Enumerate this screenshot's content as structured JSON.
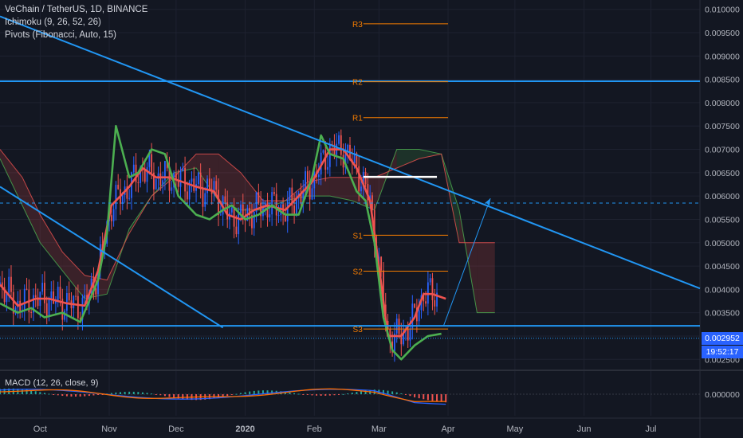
{
  "header": {
    "symbol": "VeChain / TetherUS, 1D, BINANCE",
    "indicator1": "Ichimoku (9, 26, 52, 26)",
    "indicator2": "Pivots (Fibonacci, Auto, 15)"
  },
  "macd_panel": {
    "label": "MACD (12, 26, close, 9)",
    "zero_label": "0.000000"
  },
  "price_tags": {
    "last_price": "0.002952",
    "countdown": "19:52:17"
  },
  "colors": {
    "background": "#131722",
    "grid": "#1e2230",
    "axis_text": "#b2b5be",
    "candle_up": "#2962ff",
    "candle_down": "#ef5350",
    "tenkan": "#ef5350",
    "kijun": "#4caf50",
    "cloud_bull": "#4caf50",
    "cloud_bear": "#ef5350",
    "trendline": "#2196f3",
    "pivot": "#f57c00"
  },
  "chart_data": {
    "type": "line",
    "title": "VeChain / TetherUS, 1D, BINANCE",
    "ylim": [
      0.0023,
      0.0102
    ],
    "y_ticks": [
      "0.010000",
      "0.009500",
      "0.009000",
      "0.008500",
      "0.008000",
      "0.007500",
      "0.007000",
      "0.006500",
      "0.006000",
      "0.005500",
      "0.005000",
      "0.004500",
      "0.004000",
      "0.003500",
      "0.003000",
      "0.002500"
    ],
    "y_tick_values": [
      0.01,
      0.0095,
      0.009,
      0.0085,
      0.008,
      0.0075,
      0.007,
      0.0065,
      0.006,
      0.0055,
      0.005,
      0.0045,
      0.004,
      0.0035,
      0.003,
      0.0025
    ],
    "x_ticks": [
      "Oct",
      "Nov",
      "Dec",
      "2020",
      "Feb",
      "Mar",
      "Apr",
      "May",
      "Jun",
      "Jul"
    ],
    "x_tick_days": [
      0,
      31,
      61,
      92,
      123,
      152,
      183,
      213,
      244,
      274
    ],
    "x_range_days": [
      -18,
      296
    ],
    "pivots": [
      {
        "label": "R3",
        "value": 0.00969
      },
      {
        "label": "R2",
        "value": 0.00845
      },
      {
        "label": "R1",
        "value": 0.00768
      },
      {
        "label": "S1",
        "value": 0.00516
      },
      {
        "label": "S2",
        "value": 0.00439
      },
      {
        "label": "S3",
        "value": 0.00315
      }
    ],
    "pivot_day_range": [
      145,
      183
    ],
    "horizontal_lines": [
      {
        "value": 0.00846
      },
      {
        "value": 0.00322
      }
    ],
    "dashed_level": 0.00585,
    "last_price_level": 0.002952,
    "trendlines": [
      {
        "from": [
          -18,
          0.00985
        ],
        "to": [
          296,
          0.00402
        ]
      },
      {
        "from": [
          -18,
          0.0062
        ],
        "to": [
          82,
          0.00318
        ]
      }
    ],
    "projection": [
      [
        181,
        0.00322
      ],
      [
        202,
        0.00595
      ]
    ],
    "white_level": {
      "value": 0.00641,
      "day_range": [
        145,
        178
      ]
    },
    "series": [
      {
        "name": "Tenkan",
        "days": [
          -18,
          -10,
          -2,
          4,
          12,
          20,
          26,
          32,
          40,
          46,
          52,
          58,
          64,
          70,
          78,
          84,
          90,
          96,
          102,
          110,
          116,
          122,
          130,
          136,
          142,
          148,
          152,
          156,
          162,
          168,
          172,
          176,
          182
        ],
        "values": [
          0.0041,
          0.00365,
          0.0038,
          0.0038,
          0.0037,
          0.00365,
          0.0044,
          0.0058,
          0.0062,
          0.0066,
          0.0064,
          0.0064,
          0.0063,
          0.0062,
          0.0061,
          0.0056,
          0.0055,
          0.0057,
          0.0058,
          0.0057,
          0.006,
          0.0063,
          0.007,
          0.007,
          0.0066,
          0.0059,
          0.0045,
          0.003,
          0.003,
          0.0034,
          0.0039,
          0.0039,
          0.0038
        ]
      },
      {
        "name": "Kijun",
        "days": [
          -18,
          -10,
          -4,
          2,
          10,
          18,
          26,
          30,
          34,
          40,
          44,
          50,
          56,
          62,
          70,
          76,
          82,
          86,
          92,
          98,
          104,
          110,
          116,
          122,
          126,
          130,
          136,
          142,
          146,
          150,
          154,
          158,
          162,
          168,
          174,
          180
        ],
        "values": [
          0.0037,
          0.0035,
          0.0036,
          0.0034,
          0.0035,
          0.0033,
          0.0042,
          0.0052,
          0.0075,
          0.0064,
          0.0065,
          0.007,
          0.0069,
          0.006,
          0.0056,
          0.0055,
          0.0057,
          0.0058,
          0.0055,
          0.0056,
          0.0058,
          0.0056,
          0.0056,
          0.0064,
          0.0073,
          0.0069,
          0.0068,
          0.0061,
          0.0059,
          0.005,
          0.0034,
          0.0027,
          0.0025,
          0.0028,
          0.003,
          0.00305
        ]
      }
    ],
    "cloud": {
      "days": [
        -18,
        -8,
        0,
        10,
        20,
        30,
        40,
        50,
        60,
        70,
        80,
        90,
        100,
        110,
        120,
        130,
        140,
        150,
        160,
        170,
        180,
        188,
        196,
        204
      ],
      "span_a": [
        0.0068,
        0.0058,
        0.005,
        0.0044,
        0.0038,
        0.0039,
        0.0053,
        0.006,
        0.0065,
        0.0066,
        0.0059,
        0.0057,
        0.0057,
        0.0059,
        0.006,
        0.006,
        0.0059,
        0.0057,
        0.007,
        0.007,
        0.0069,
        0.0057,
        0.0035,
        0.0035
      ],
      "span_b": [
        0.007,
        0.0064,
        0.0056,
        0.0048,
        0.0043,
        0.0042,
        0.0052,
        0.006,
        0.0064,
        0.0069,
        0.0069,
        0.0065,
        0.0059,
        0.0059,
        0.0063,
        0.0064,
        0.0064,
        0.0064,
        0.0066,
        0.0068,
        0.0069,
        0.005,
        0.005,
        0.005
      ]
    },
    "macd_ylim": [
      -0.00035,
      0.00035
    ]
  }
}
